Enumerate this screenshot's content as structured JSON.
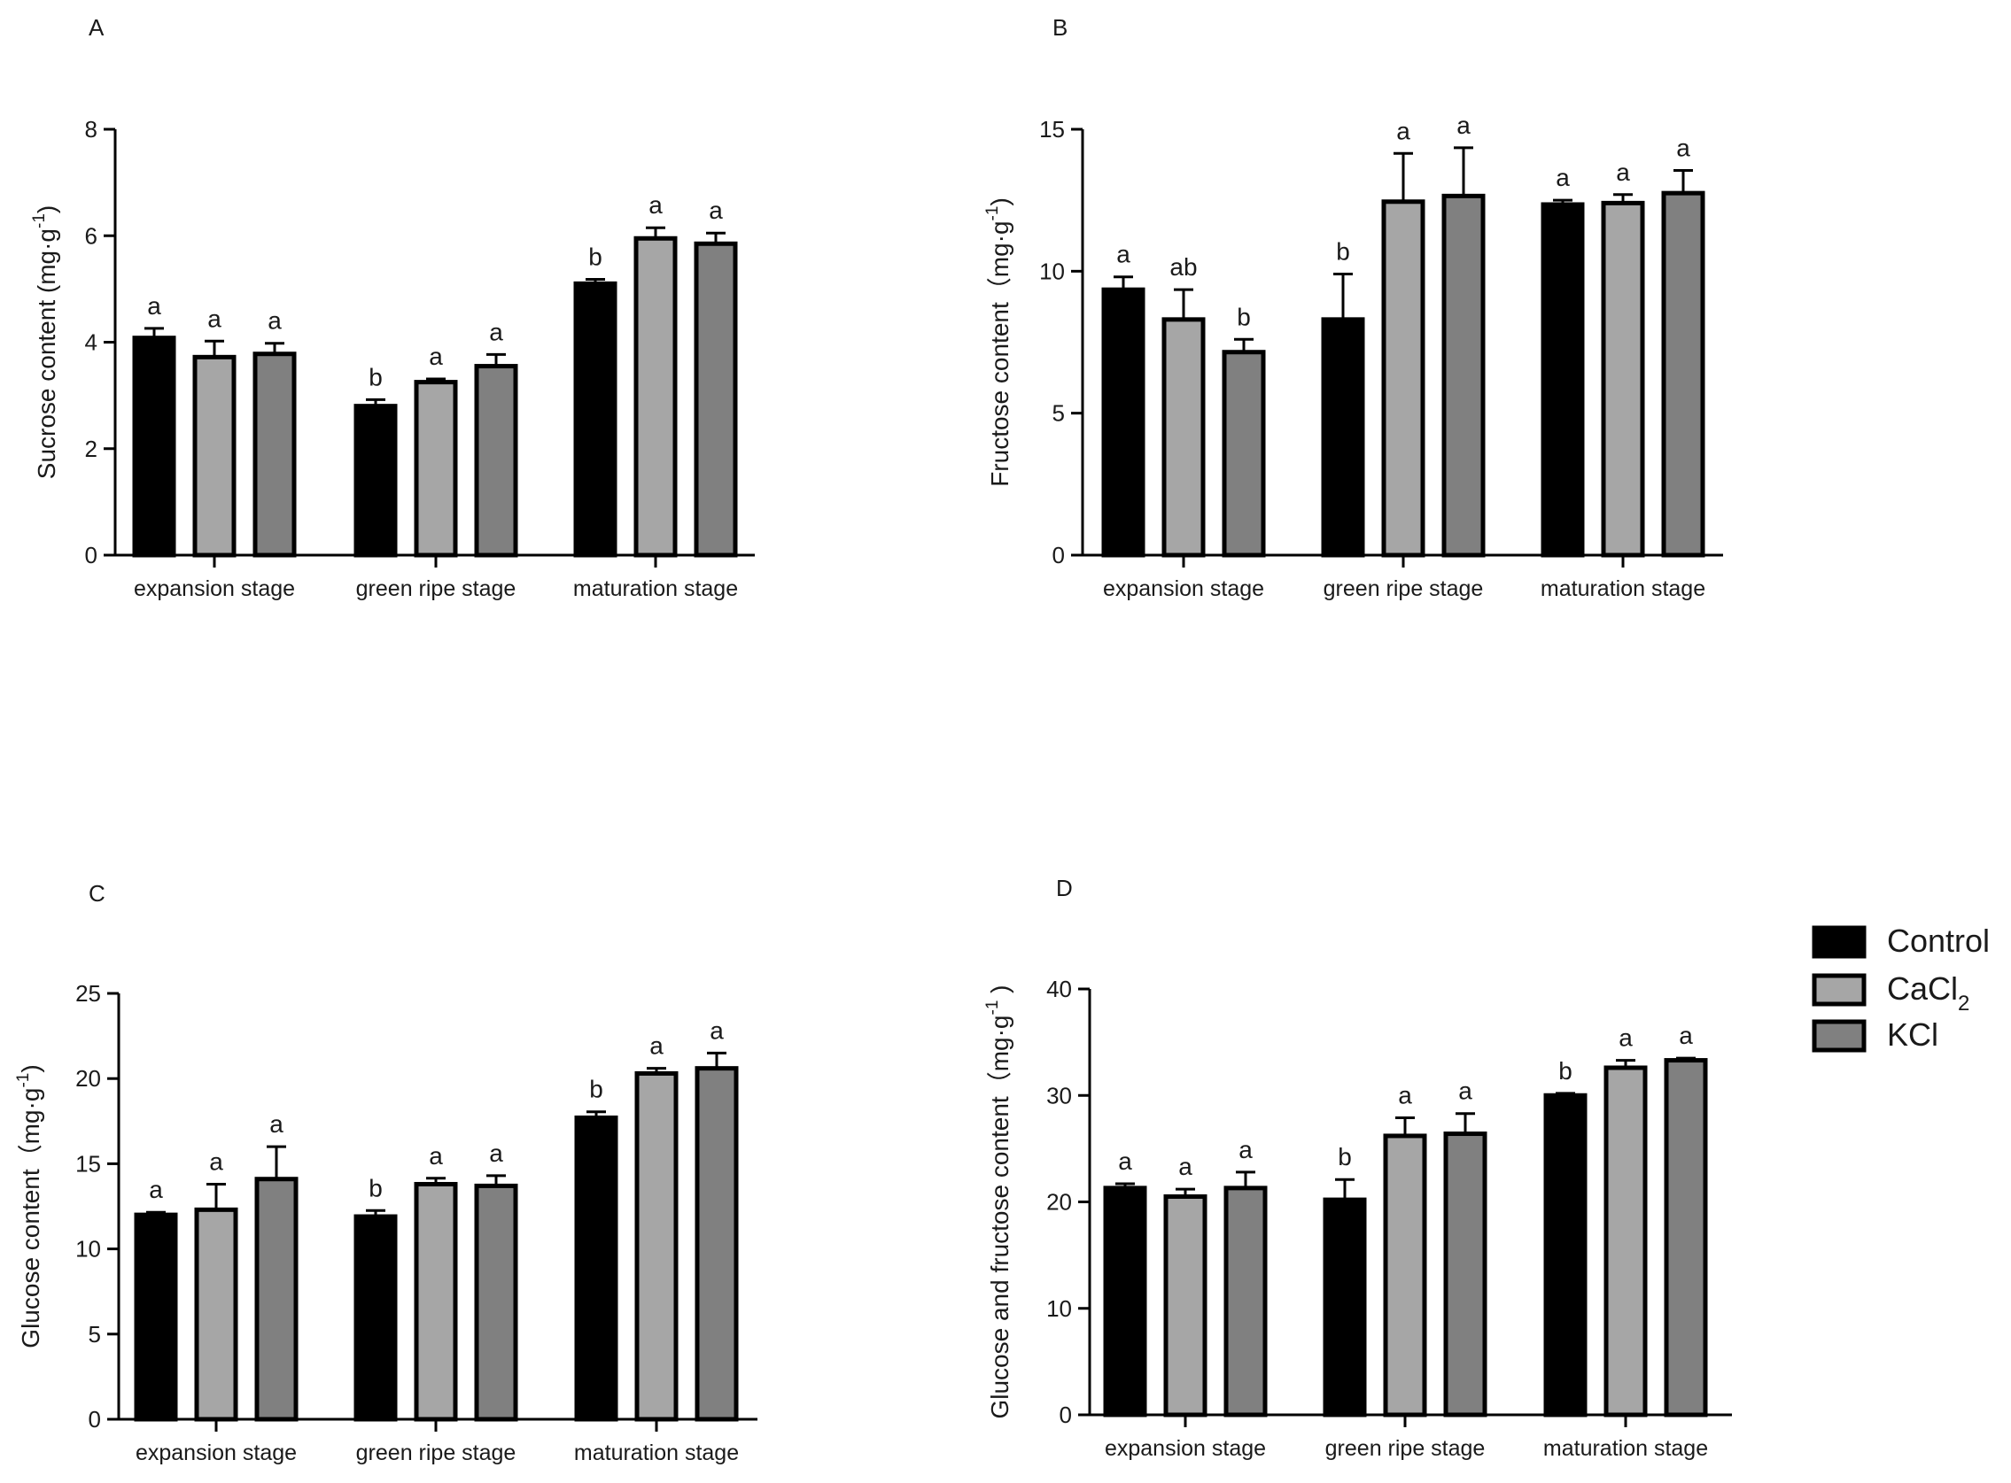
{
  "legend": {
    "entries": [
      {
        "name": "Control",
        "subscript": "",
        "color": "#000000"
      },
      {
        "name": "CaCl",
        "subscript": "2",
        "color": "#a6a6a6"
      },
      {
        "name": "KCl",
        "subscript": "",
        "color": "#808080"
      }
    ]
  },
  "chart_data": [
    {
      "panel": "A",
      "type": "bar",
      "ylabel": "Sucrose content (mg·g",
      "ylabel_sup": "-1",
      "ylabel_close": ")",
      "ylim": [
        0,
        8
      ],
      "yticks": [
        "0",
        "2",
        "4",
        "6",
        "8"
      ],
      "categories": [
        "expansion stage",
        "green ripe stage",
        "maturation stage"
      ],
      "series": [
        {
          "name": "Control",
          "values": [
            4.08,
            2.8,
            5.1
          ],
          "errors": [
            0.18,
            0.12,
            0.08
          ],
          "letters": [
            "a",
            "b",
            "b"
          ]
        },
        {
          "name": "CaCl2",
          "values": [
            3.72,
            3.25,
            5.95
          ],
          "errors": [
            0.3,
            0.06,
            0.2
          ],
          "letters": [
            "a",
            "a",
            "a"
          ]
        },
        {
          "name": "KCl",
          "values": [
            3.78,
            3.55,
            5.85
          ],
          "errors": [
            0.2,
            0.22,
            0.2
          ],
          "letters": [
            "a",
            "a",
            "a"
          ]
        }
      ]
    },
    {
      "panel": "B",
      "type": "bar",
      "ylabel": "Fructose content（mg·g",
      "ylabel_sup": "-1",
      "ylabel_close": ")",
      "ylim": [
        0,
        15
      ],
      "yticks": [
        "0",
        "5",
        "10",
        "15"
      ],
      "categories": [
        "expansion stage",
        "green ripe stage",
        "maturation stage"
      ],
      "series": [
        {
          "name": "Control",
          "values": [
            9.35,
            8.3,
            12.35
          ],
          "errors": [
            0.45,
            1.6,
            0.15
          ],
          "letters": [
            "a",
            "b",
            "a"
          ]
        },
        {
          "name": "CaCl2",
          "values": [
            8.3,
            12.45,
            12.4
          ],
          "errors": [
            1.05,
            1.7,
            0.3
          ],
          "letters": [
            "ab",
            "a",
            "a"
          ]
        },
        {
          "name": "KCl",
          "values": [
            7.15,
            12.65,
            12.75
          ],
          "errors": [
            0.45,
            1.7,
            0.8
          ],
          "letters": [
            "b",
            "a",
            "a"
          ]
        }
      ]
    },
    {
      "panel": "C",
      "type": "bar",
      "ylabel": "Glucose  content（mg·g",
      "ylabel_sup": "-1",
      "ylabel_close": ")",
      "ylim": [
        0,
        25
      ],
      "yticks": [
        "0",
        "5",
        "10",
        "15",
        "20",
        "25"
      ],
      "categories": [
        "expansion stage",
        "green ripe stage",
        "maturation stage"
      ],
      "series": [
        {
          "name": "Control",
          "values": [
            12.0,
            11.9,
            17.7
          ],
          "errors": [
            0.15,
            0.35,
            0.35
          ],
          "letters": [
            "a",
            "b",
            "b"
          ]
        },
        {
          "name": "CaCl2",
          "values": [
            12.3,
            13.8,
            20.3
          ],
          "errors": [
            1.5,
            0.35,
            0.3
          ],
          "letters": [
            "a",
            "a",
            "a"
          ]
        },
        {
          "name": "KCl",
          "values": [
            14.1,
            13.7,
            20.6
          ],
          "errors": [
            1.9,
            0.6,
            0.9
          ],
          "letters": [
            "a",
            "a",
            "a"
          ]
        }
      ]
    },
    {
      "panel": "D",
      "type": "bar",
      "ylabel": "Glucose and fructose content（mg·g",
      "ylabel_sup": "-1",
      "ylabel_close": " )",
      "ylim": [
        0,
        40
      ],
      "yticks": [
        "0",
        "10",
        "20",
        "30",
        "40"
      ],
      "categories": [
        "expansion stage",
        "green ripe stage",
        "maturation stage"
      ],
      "series": [
        {
          "name": "Control",
          "values": [
            21.3,
            20.2,
            30.0
          ],
          "errors": [
            0.4,
            1.9,
            0.2
          ],
          "letters": [
            "a",
            "b",
            "b"
          ]
        },
        {
          "name": "CaCl2",
          "values": [
            20.5,
            26.2,
            32.6
          ],
          "errors": [
            0.7,
            1.7,
            0.7
          ],
          "letters": [
            "a",
            "a",
            "a"
          ]
        },
        {
          "name": "KCl",
          "values": [
            21.3,
            26.4,
            33.3
          ],
          "errors": [
            1.5,
            1.9,
            0.2
          ],
          "letters": [
            "a",
            "a",
            "a"
          ]
        }
      ]
    }
  ]
}
